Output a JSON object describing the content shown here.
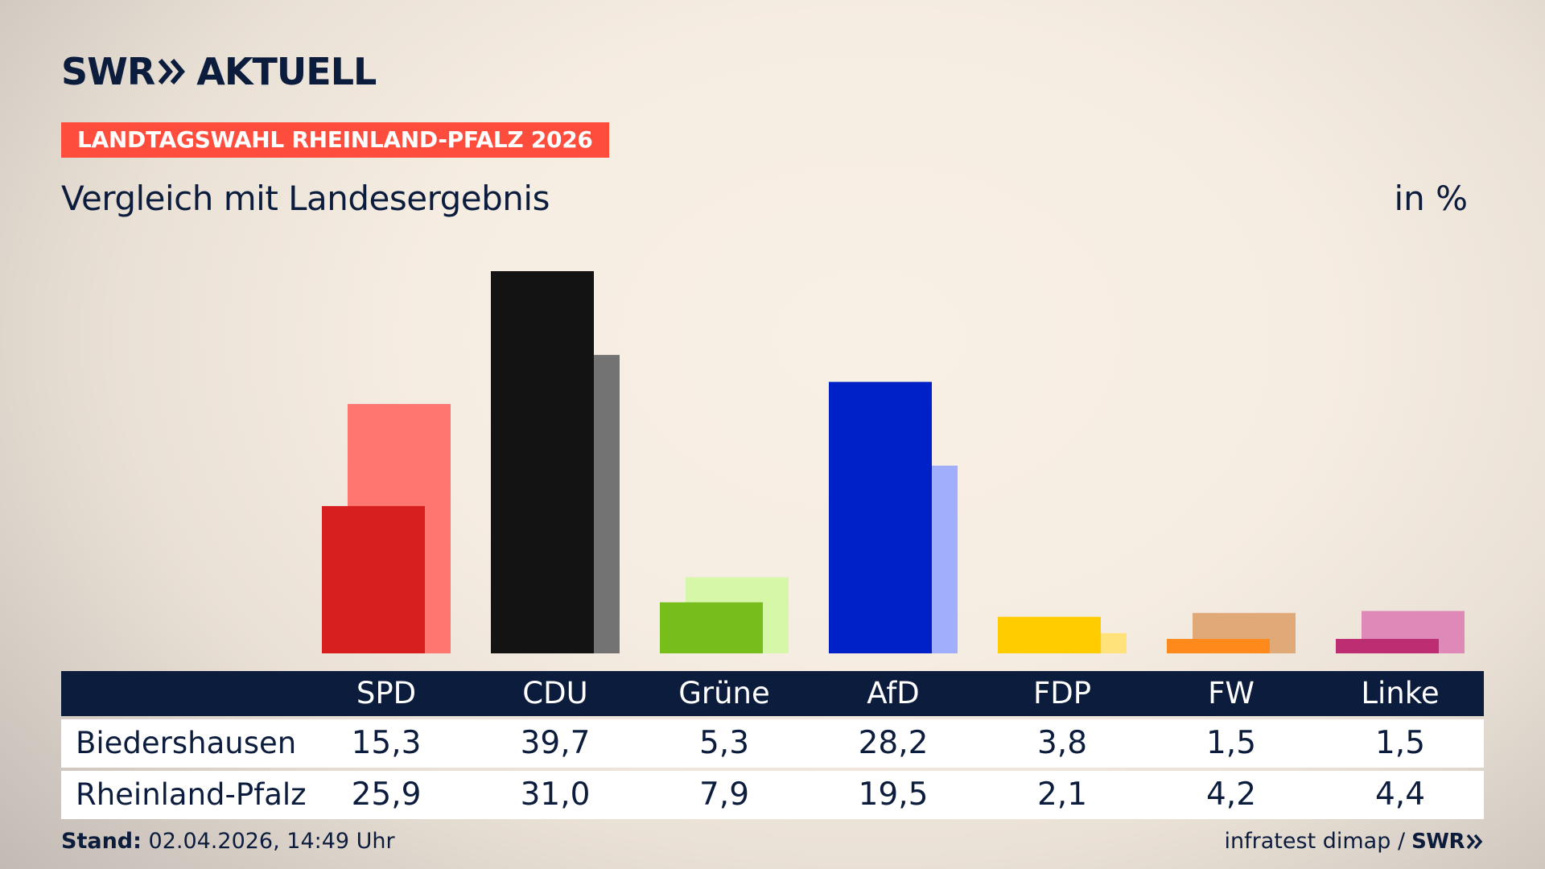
{
  "brand": {
    "logo_left": "SWR",
    "logo_right": "AKTUELL"
  },
  "header": {
    "kicker": "LANDTAGSWAHL RHEINLAND-PFALZ 2026",
    "subtitle": "Vergleich mit Landesergebnis",
    "unit": "in %"
  },
  "colors": {
    "navy": "#0c1c3c",
    "kicker_bg": "#ff4d3d",
    "parties_dark": [
      "#d71f1f",
      "#131313",
      "#77bd1b",
      "#0021c8",
      "#ffcc00",
      "#ff8a1c",
      "#bd2d72"
    ],
    "parties_light": [
      "#ff7670",
      "#737373",
      "#d6f7a8",
      "#a0aefc",
      "#ffe37a",
      "#dfa978",
      "#de89b8"
    ]
  },
  "chart_data": {
    "type": "bar",
    "categories": [
      "SPD",
      "CDU",
      "Grüne",
      "AfD",
      "FDP",
      "FW",
      "Linke"
    ],
    "series": [
      {
        "name": "Biedershausen",
        "values": [
          15.3,
          39.7,
          5.3,
          28.2,
          3.8,
          1.5,
          1.5
        ]
      },
      {
        "name": "Rheinland-Pfalz",
        "values": [
          25.9,
          31.0,
          7.9,
          19.5,
          2.1,
          4.2,
          4.4
        ]
      }
    ],
    "ylim": [
      0,
      40
    ],
    "legend": "table-below",
    "grid": false
  },
  "table": {
    "rows": [
      {
        "label": "Biedershausen",
        "values": [
          "15,3",
          "39,7",
          "5,3",
          "28,2",
          "3,8",
          "1,5",
          "1,5"
        ]
      },
      {
        "label": "Rheinland-Pfalz",
        "values": [
          "25,9",
          "31,0",
          "7,9",
          "19,5",
          "2,1",
          "4,2",
          "4,4"
        ]
      }
    ]
  },
  "footer": {
    "stand_label": "Stand:",
    "stand_value": "02.04.2026, 14:49 Uhr",
    "source": "infratest dimap /",
    "source_logo": "SWR"
  }
}
